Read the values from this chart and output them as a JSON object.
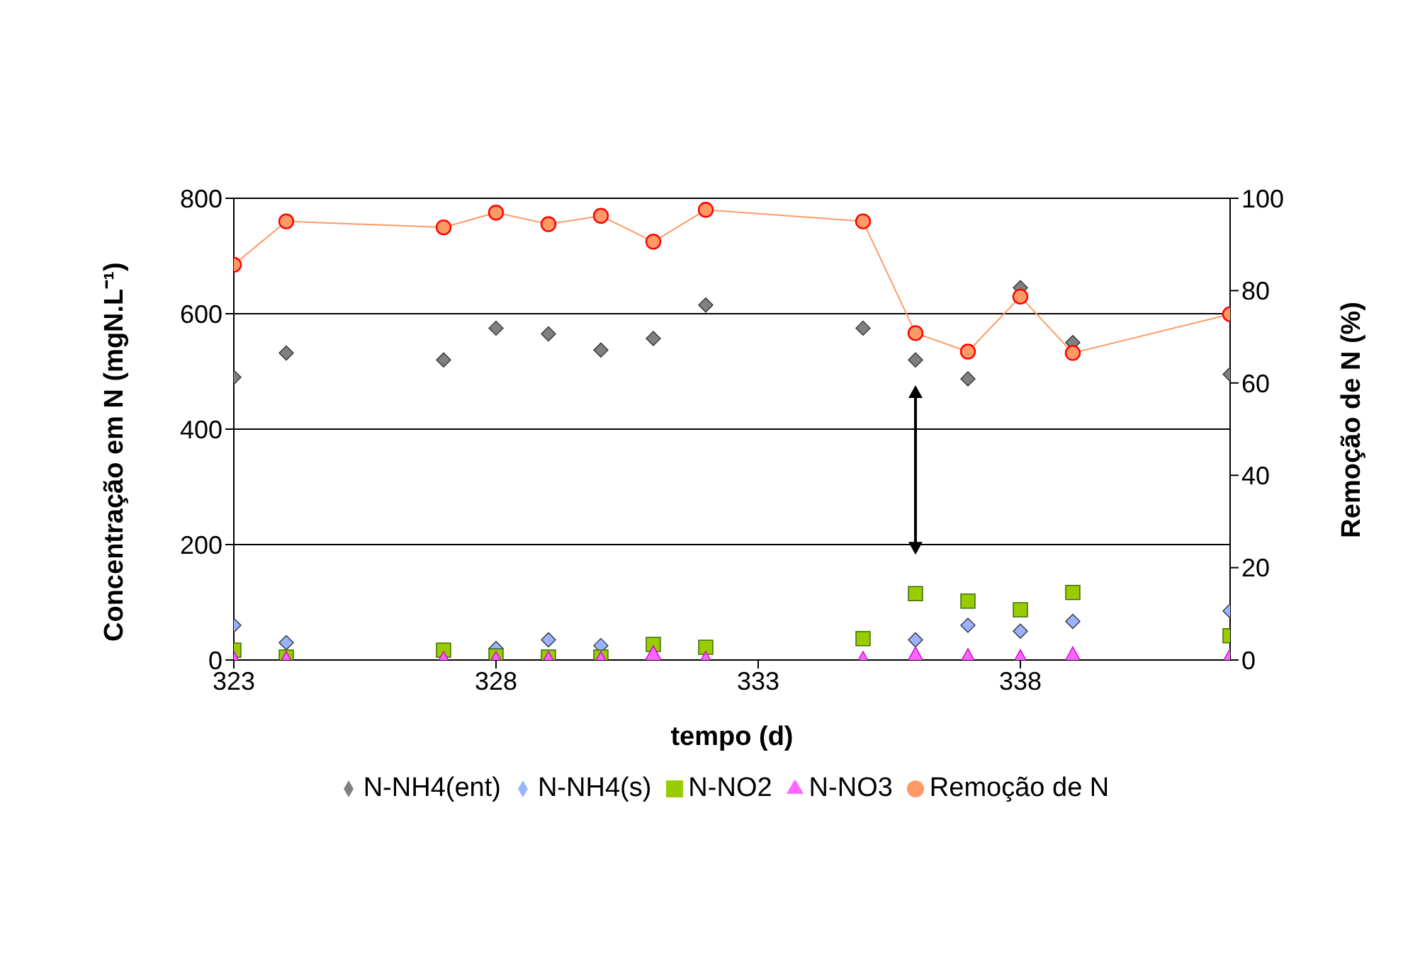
{
  "chart_data": {
    "type": "scatter",
    "xlabel": "tempo (d)",
    "ylabel": "Concentração em N (mgN.L⁻¹)",
    "y2label": "Remoção de N (%)",
    "x": [
      323,
      324,
      327,
      328,
      329,
      330,
      331,
      332,
      335,
      336,
      337,
      338,
      339,
      342
    ],
    "xlim": [
      323,
      342
    ],
    "xticks": [
      323,
      328,
      333,
      338
    ],
    "ylim": [
      0,
      800
    ],
    "yticks": [
      0,
      200,
      400,
      600,
      800
    ],
    "y2lim": [
      0,
      100
    ],
    "y2ticks": [
      0,
      20,
      40,
      60,
      80,
      100
    ],
    "grid": "y",
    "legend": "bottom",
    "series": [
      {
        "name": "N-NH4(ent)",
        "color": "#808080",
        "marker": "diamond",
        "values": [
          490,
          532,
          520,
          575,
          565,
          537,
          557,
          615,
          575,
          520,
          487,
          645,
          550,
          495
        ]
      },
      {
        "name": "N-NH4(s)",
        "color": "#99b3ff",
        "marker": "diamond",
        "values": [
          60,
          30,
          null,
          20,
          35,
          25,
          null,
          null,
          null,
          35,
          60,
          50,
          67,
          85
        ]
      },
      {
        "name": "N-NO2",
        "color": "#99cc00",
        "marker": "square",
        "values": [
          17,
          5,
          17,
          7,
          5,
          5,
          27,
          22,
          37,
          115,
          102,
          87,
          117,
          42
        ]
      },
      {
        "name": "N-NO3",
        "color": "#ff66ff",
        "marker": "triangle",
        "values": [
          0,
          0,
          0,
          0,
          0,
          0,
          10,
          0,
          0,
          8,
          5,
          3,
          8,
          5
        ]
      },
      {
        "name": "Remoção de N",
        "type": "line",
        "axis": "y2",
        "color": "#ff9966",
        "marker": "circle",
        "values": [
          85.6,
          95,
          93.7,
          96.9,
          94.4,
          96.2,
          90.6,
          97.5,
          95,
          70.8,
          66.8,
          78.7,
          66.5,
          74.9
        ]
      }
    ]
  }
}
